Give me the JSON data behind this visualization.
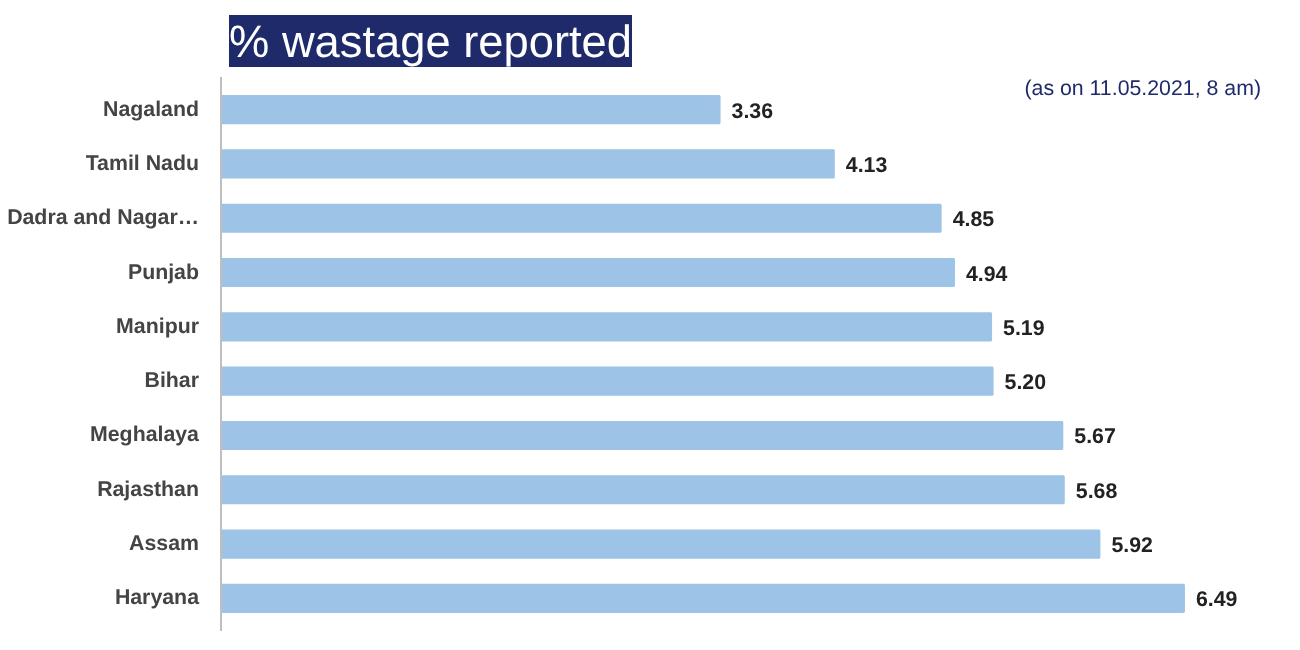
{
  "chart_data": {
    "type": "bar",
    "orientation": "horizontal",
    "title": "% wastage reported",
    "subtitle": "(as on 11.05.2021, 8 am)",
    "categories": [
      "Nagaland",
      "Tamil Nadu",
      "Dadra and Nagar…",
      "Punjab",
      "Manipur",
      "Bihar",
      "Meghalaya",
      "Rajasthan",
      "Assam",
      "Haryana"
    ],
    "values": [
      3.36,
      4.13,
      4.85,
      4.94,
      5.19,
      5.2,
      5.67,
      5.68,
      5.92,
      6.49
    ],
    "value_labels": [
      "3.36",
      "4.13",
      "4.85",
      "4.94",
      "5.19",
      "5.20",
      "5.67",
      "5.68",
      "5.92",
      "6.49"
    ],
    "color": "#9dc3e6",
    "grid": false
  }
}
